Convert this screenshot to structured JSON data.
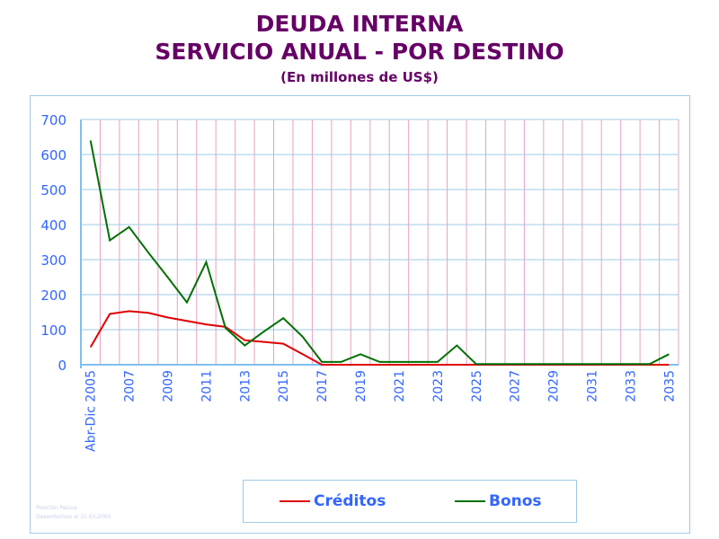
{
  "title": "DEUDA INTERNA",
  "subtitle": "SERVICIO ANUAL - POR DESTINO",
  "units": "(En millones de US$)",
  "note": [
    "Posición Pasiva",
    "Desembolsos al 31.03.2005"
  ],
  "chart_data": {
    "type": "line",
    "title": "DEUDA INTERNA - SERVICIO ANUAL - POR DESTINO",
    "ylabel": "En millones de US$",
    "ylim": [
      0,
      700
    ],
    "yticks": [
      0,
      100,
      200,
      300,
      400,
      500,
      600,
      700
    ],
    "categories": [
      "Abr-Dic 2005",
      "2006",
      "2007",
      "2008",
      "2009",
      "2010",
      "2011",
      "2012",
      "2013",
      "2014",
      "2015",
      "2016",
      "2017",
      "2018",
      "2019",
      "2020",
      "2021",
      "2022",
      "2023",
      "2024",
      "2025",
      "2026",
      "2027",
      "2028",
      "2029",
      "2030",
      "2031",
      "2032",
      "2033",
      "2034",
      "2035"
    ],
    "tick_labels": [
      "Abr-Dic 2005",
      "2007",
      "2009",
      "2011",
      "2013",
      "2015",
      "2017",
      "2019",
      "2021",
      "2023",
      "2025",
      "2027",
      "2029",
      "2031",
      "2033",
      "2035"
    ],
    "series": [
      {
        "name": "Créditos",
        "color": "#e00000",
        "values": [
          50,
          145,
          153,
          148,
          135,
          125,
          115,
          108,
          70,
          65,
          60,
          30,
          0,
          0,
          0,
          0,
          0,
          0,
          0,
          0,
          0,
          0,
          0,
          0,
          0,
          0,
          0,
          0,
          0,
          0,
          0
        ]
      },
      {
        "name": "Bonos",
        "color": "#007000",
        "values": [
          640,
          355,
          393,
          320,
          250,
          178,
          293,
          105,
          55,
          95,
          133,
          80,
          8,
          8,
          30,
          8,
          8,
          8,
          8,
          55,
          2,
          2,
          2,
          2,
          2,
          2,
          2,
          2,
          2,
          2,
          30
        ]
      }
    ],
    "legend": "bottom"
  }
}
